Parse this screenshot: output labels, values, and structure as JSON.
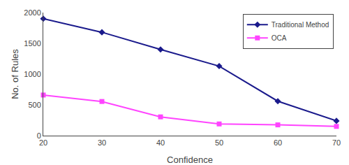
{
  "chart_data": {
    "type": "line",
    "x": [
      20,
      30,
      40,
      50,
      60,
      70
    ],
    "series": [
      {
        "name": "Traditional Method",
        "color": "#1a1a8c",
        "marker": "diamond",
        "values": [
          1900,
          1680,
          1400,
          1130,
          560,
          240
        ]
      },
      {
        "name": "OCA",
        "color": "#ff44ff",
        "marker": "square",
        "values": [
          660,
          555,
          305,
          190,
          175,
          150
        ]
      }
    ],
    "xlabel": "Confidence",
    "ylabel": "No. of Rules",
    "xlim": [
      20,
      70
    ],
    "ylim": [
      0,
      2000
    ],
    "xticks": [
      20,
      30,
      40,
      50,
      60,
      70
    ],
    "yticks": [
      0,
      500,
      1000,
      1500,
      2000
    ],
    "legend": "upper right",
    "grid": false
  }
}
